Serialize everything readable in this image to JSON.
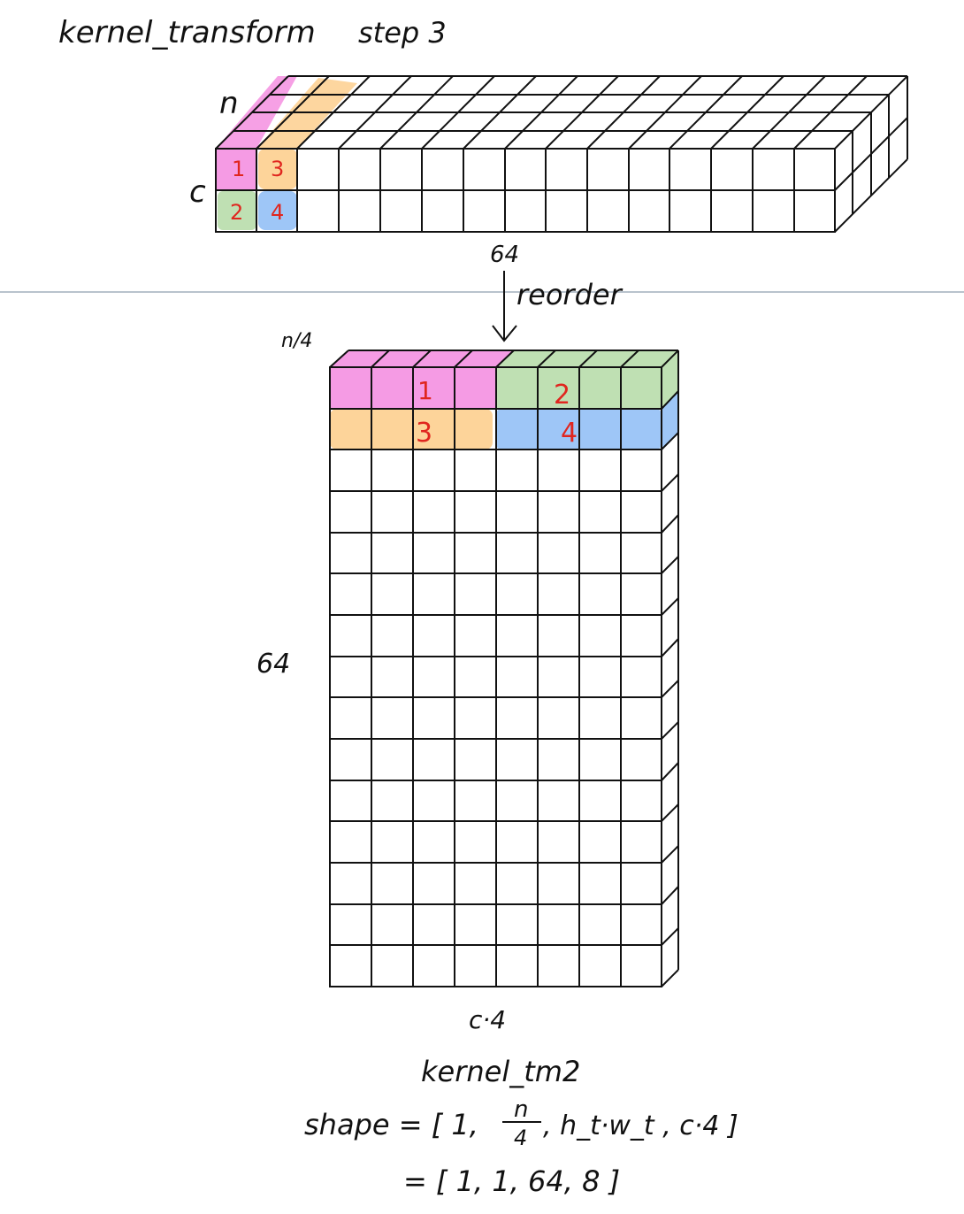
{
  "title": "kernel_transform",
  "step": "step 3",
  "top_block": {
    "depth_label": "n",
    "rows_label": "c",
    "cols_label": "64",
    "cells": [
      {
        "label": "1",
        "color": "#f59be4"
      },
      {
        "label": "2",
        "color": "#bfe0b3"
      },
      {
        "label": "3",
        "color": "#fdd49a"
      },
      {
        "label": "4",
        "color": "#9ec6f7"
      }
    ]
  },
  "arrow_label": "reorder",
  "bottom_block": {
    "depth_label": "n/4",
    "rows_label": "64",
    "cols_label": "c·4",
    "cells": [
      {
        "label": "1",
        "color": "#f59be4"
      },
      {
        "label": "2",
        "color": "#bfe0b3"
      },
      {
        "label": "3",
        "color": "#fdd49a"
      },
      {
        "label": "4",
        "color": "#9ec6f7"
      }
    ]
  },
  "caption": {
    "name": "kernel_tm2",
    "shape_prefix": "shape = [ 1,",
    "fraction_num": "n",
    "fraction_den": "4",
    "shape_suffix": ", h_t·w_t , c·4 ]",
    "result": "= [ 1,  1, 64,  8 ]"
  },
  "colors": {
    "pink": "#f59be4",
    "green": "#bfe0b3",
    "orange": "#fdd49a",
    "blue": "#9ec6f7",
    "digit_red": "#e0261f",
    "divider": "#b9c3cd"
  }
}
